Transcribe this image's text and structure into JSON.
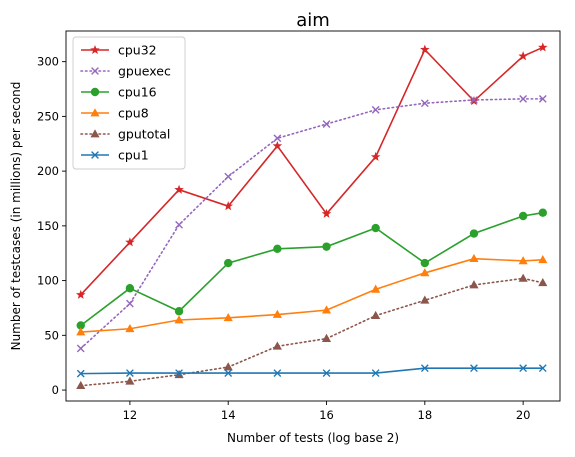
{
  "chart_data": {
    "type": "line",
    "title": "aim",
    "xlabel": "Number of tests (log base 2)",
    "ylabel": "Number of testcases (in millions) per second",
    "xlim": [
      10.7,
      20.75
    ],
    "ylim": [
      -10,
      328
    ],
    "x_ticks": [
      12,
      14,
      16,
      18,
      20
    ],
    "y_ticks": [
      0,
      50,
      100,
      150,
      200,
      250,
      300
    ],
    "legend_position": "top-left",
    "x": [
      11,
      12,
      13,
      14,
      15,
      16,
      17,
      18,
      19,
      20,
      20.4
    ],
    "series": [
      {
        "name": "cpu32",
        "color": "#d62728",
        "marker": "star",
        "style": "solid",
        "values": [
          87,
          135,
          183,
          168,
          223,
          161,
          213,
          311,
          264,
          305,
          313
        ]
      },
      {
        "name": "gpuexec",
        "color": "#9467bd",
        "marker": "x",
        "style": "dotted",
        "values": [
          38,
          79,
          151,
          195,
          230,
          243,
          256,
          262,
          265,
          266,
          266
        ]
      },
      {
        "name": "cpu16",
        "color": "#2ca02c",
        "marker": "circle",
        "style": "solid",
        "values": [
          59,
          93,
          72,
          116,
          129,
          131,
          148,
          116,
          143,
          159,
          162
        ]
      },
      {
        "name": "cpu8",
        "color": "#ff7f0e",
        "marker": "triangle",
        "style": "solid",
        "values": [
          53,
          56,
          64,
          66,
          69,
          73,
          92,
          107,
          120,
          118,
          119
        ]
      },
      {
        "name": "gputotal",
        "color": "#8c564b",
        "marker": "triangle",
        "style": "dotted",
        "values": [
          4,
          8,
          14,
          21,
          40,
          47,
          68,
          82,
          96,
          102,
          98
        ]
      },
      {
        "name": "cpu1",
        "color": "#1f77b4",
        "marker": "x",
        "style": "solid",
        "values": [
          15,
          15.5,
          15.5,
          15.5,
          15.5,
          15.5,
          15.5,
          20,
          20,
          20,
          20
        ]
      }
    ]
  }
}
